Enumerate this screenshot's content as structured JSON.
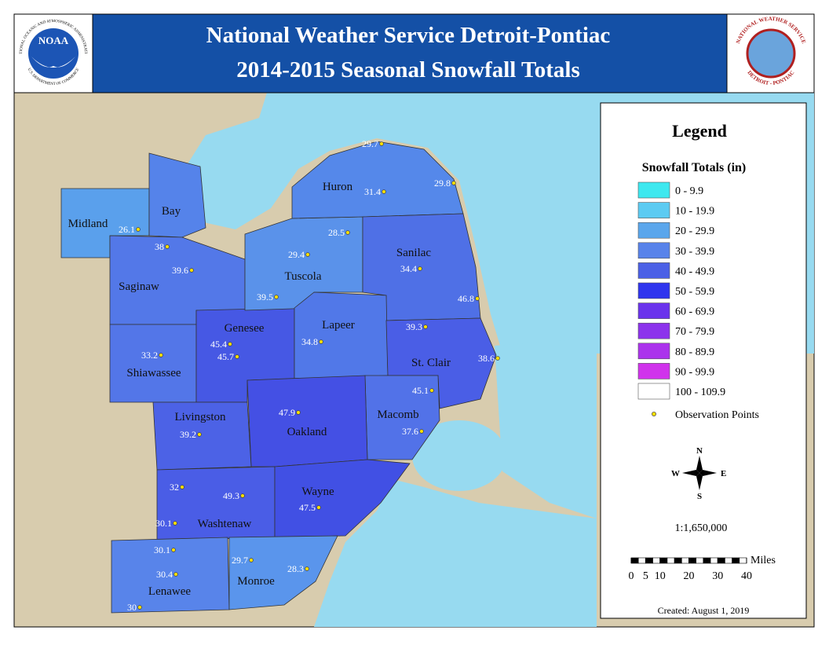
{
  "header": {
    "title_line1": "National Weather Service Detroit-Pontiac",
    "title_line2": "2014-2015 Seasonal Snowfall Totals",
    "noaa_logo": {
      "name": "NOAA",
      "ring_top": "NATIONAL OCEANIC AND ATMOSPHERIC ADMINISTRATION",
      "ring_bottom": "U.S. DEPARTMENT OF COMMERCE"
    },
    "nws_logo": {
      "ring_top": "NATIONAL WEATHER SERVICE",
      "ring_bottom": "DETROIT - PONTIAC"
    }
  },
  "map": {
    "counties": [
      "Huron",
      "Bay",
      "Midland",
      "Sanilac",
      "Tuscola",
      "Saginaw",
      "Lapeer",
      "Genesee",
      "St. Clair",
      "Shiawassee",
      "Livingston",
      "Macomb",
      "Oakland",
      "Wayne",
      "Washtenaw",
      "Monroe",
      "Lenawee"
    ],
    "observations": [
      29.7,
      31.4,
      29.8,
      26.1,
      28.5,
      38,
      29.4,
      39.6,
      34.4,
      46.8,
      39.5,
      39.3,
      45.4,
      34.8,
      45.7,
      38.6,
      33.2,
      45.1,
      47.9,
      37.6,
      39.2,
      32,
      49.3,
      47.5,
      30.1,
      30.1,
      29.7,
      28.3,
      30.4,
      30
    ]
  },
  "legend": {
    "title": "Legend",
    "subtitle": "Snowfall Totals (in)",
    "classes": [
      {
        "label": "0 - 9.9",
        "color": "#3ee8ef"
      },
      {
        "label": "10 - 19.9",
        "color": "#5ccbf2"
      },
      {
        "label": "20 - 29.9",
        "color": "#5aa6ec"
      },
      {
        "label": "30 - 39.9",
        "color": "#5883ea"
      },
      {
        "label": "40 - 49.9",
        "color": "#4b60e6"
      },
      {
        "label": "50 - 59.9",
        "color": "#2f35ee"
      },
      {
        "label": "60 - 69.9",
        "color": "#6a33ec"
      },
      {
        "label": "70 - 79.9",
        "color": "#8c33ec"
      },
      {
        "label": "80 - 89.9",
        "color": "#ab33ec"
      },
      {
        "label": "90 - 99.9",
        "color": "#d033ec"
      },
      {
        "label": "100 - 109.9",
        "color": "#ffffff"
      }
    ],
    "points_label": "Observation Points",
    "compass": {
      "n": "N",
      "s": "S",
      "e": "E",
      "w": "W"
    },
    "scale_ratio": "1:1,650,000",
    "scale_unit": "Miles",
    "scale_ticks": [
      0,
      5,
      10,
      20,
      30,
      40
    ],
    "created": "Created: August 1, 2019"
  }
}
